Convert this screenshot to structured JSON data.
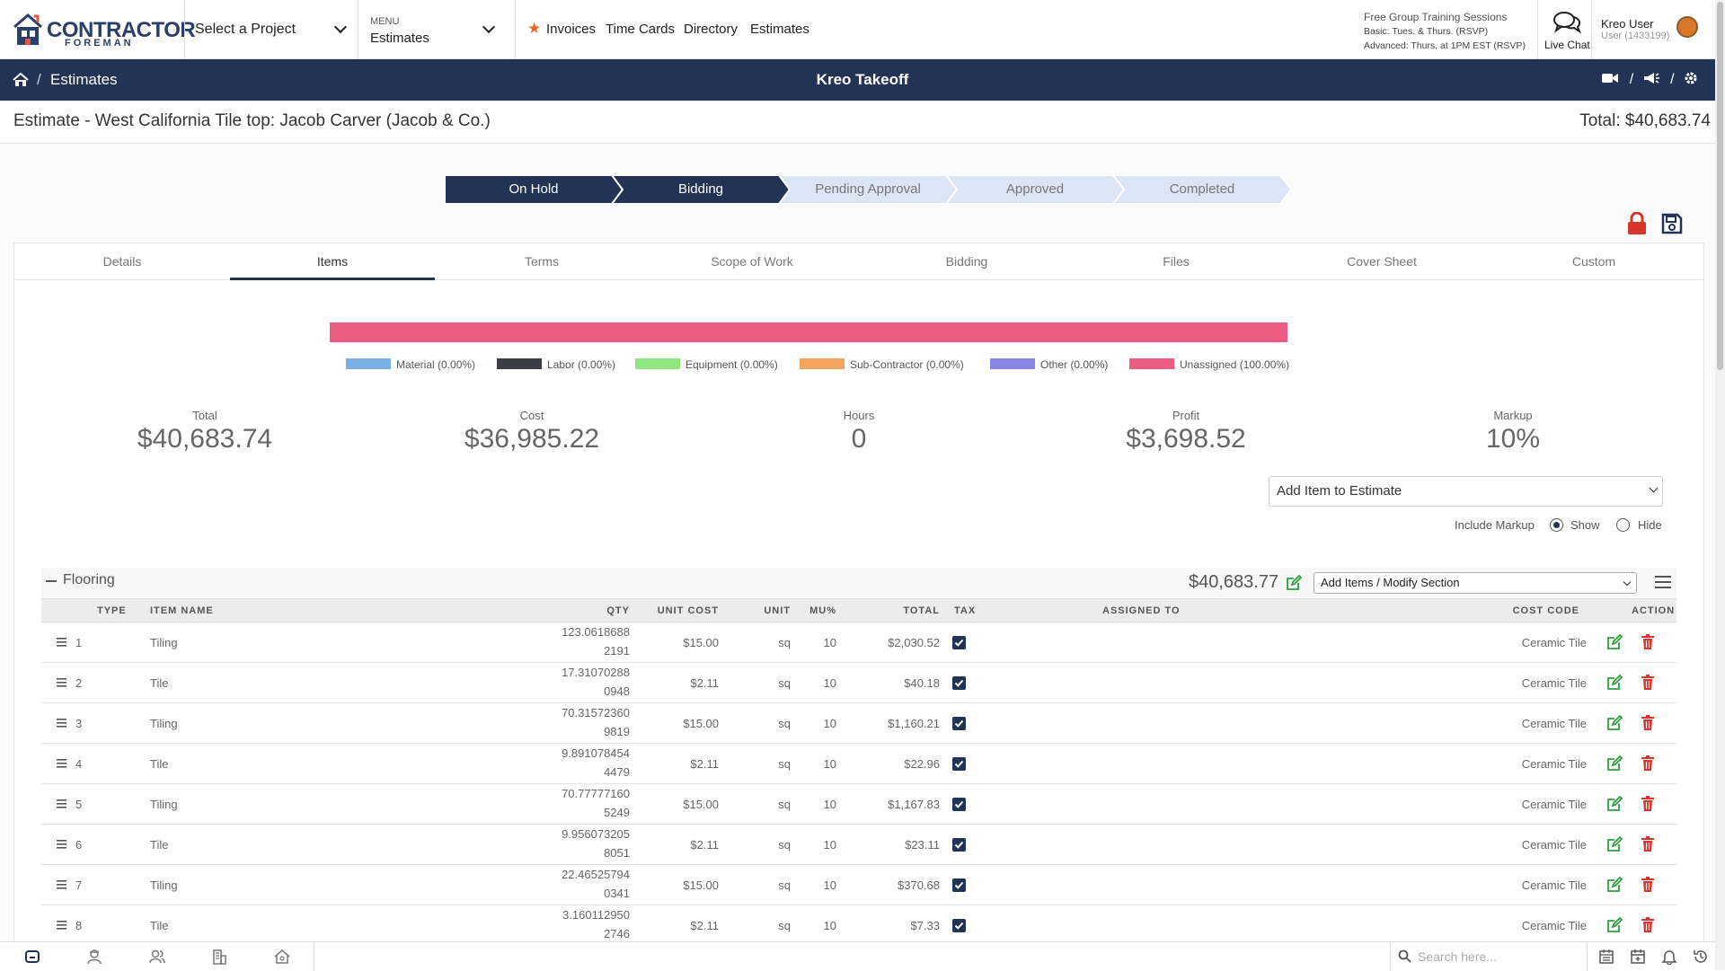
{
  "header": {
    "logo_line1": "CONTRACTOR",
    "logo_line2": "FOREMAN",
    "project_select": "Select a Project",
    "menu_label": "MENU",
    "menu_value": "Estimates",
    "quick_links": [
      "Invoices",
      "Time Cards",
      "Directory",
      "Estimates"
    ],
    "training_title": "Free Group Training Sessions",
    "training_basic": "Basic: Tues. & Thurs. (RSVP)",
    "training_advanced": "Advanced: Thurs. at 1PM EST (RSVP)",
    "live_chat": "Live Chat",
    "user_name": "Kreo User",
    "user_id": "User (1433199)"
  },
  "navbar": {
    "breadcrumb_sep": "/",
    "breadcrumb": "Estimates",
    "title": "Kreo Takeoff",
    "icons": [
      "video-icon",
      "megaphone-icon",
      "settings-icon"
    ]
  },
  "estimate": {
    "title": "Estimate - West California Tile top: Jacob Carver (Jacob & Co.)",
    "total": "Total: $40,683.74"
  },
  "status_steps": [
    {
      "label": "On Hold",
      "active": true
    },
    {
      "label": "Bidding",
      "active": true
    },
    {
      "label": "Pending Approval",
      "active": false
    },
    {
      "label": "Approved",
      "active": false
    },
    {
      "label": "Completed",
      "active": false
    }
  ],
  "tabs": [
    "Details",
    "Items",
    "Terms",
    "Scope of Work",
    "Bidding",
    "Files",
    "Cover Sheet",
    "Custom"
  ],
  "active_tab": "Items",
  "cost_breakdown": [
    {
      "label": "Material (0.00%)",
      "color": "#7aafe4"
    },
    {
      "label": "Labor (0.00%)",
      "color": "#3a3d42"
    },
    {
      "label": "Equipment (0.00%)",
      "color": "#8ee67e"
    },
    {
      "label": "Sub-Contractor (0.00%)",
      "color": "#f3a560"
    },
    {
      "label": "Other (0.00%)",
      "color": "#8786e2"
    },
    {
      "label": "Unassigned (100.00%)",
      "color": "#ec5b80"
    }
  ],
  "kpis": [
    {
      "label": "Total",
      "value": "$40,683.74"
    },
    {
      "label": "Cost",
      "value": "$36,985.22"
    },
    {
      "label": "Hours",
      "value": "0"
    },
    {
      "label": "Profit",
      "value": "$3,698.52"
    },
    {
      "label": "Markup",
      "value": "10%"
    }
  ],
  "add_item_select": "Add Item to Estimate",
  "include_markup": {
    "label": "Include Markup",
    "show": "Show",
    "hide": "Hide",
    "selected": "Show"
  },
  "section": {
    "name": "Flooring",
    "total": "$40,683.77",
    "modify_select": "Add Items / Modify Section"
  },
  "columns": [
    "TYPE",
    "ITEM NAME",
    "QTY",
    "UNIT COST",
    "UNIT",
    "MU%",
    "TOTAL",
    "TAX",
    "ASSIGNED TO",
    "COST CODE",
    "ACTION"
  ],
  "rows": [
    {
      "type": "1",
      "name": "Tiling",
      "qty1": "123.0618688",
      "qty2": "2191",
      "unit_cost": "$15.00",
      "unit": "sq",
      "mu": "10",
      "total": "$2,030.52",
      "cost_code": "Ceramic Tile"
    },
    {
      "type": "2",
      "name": "Tile",
      "qty1": "17.31070288",
      "qty2": "0948",
      "unit_cost": "$2.11",
      "unit": "sq",
      "mu": "10",
      "total": "$40.18",
      "cost_code": "Ceramic Tile"
    },
    {
      "type": "3",
      "name": "Tiling",
      "qty1": "70.31572360",
      "qty2": "9819",
      "unit_cost": "$15.00",
      "unit": "sq",
      "mu": "10",
      "total": "$1,160.21",
      "cost_code": "Ceramic Tile"
    },
    {
      "type": "4",
      "name": "Tile",
      "qty1": "9.891078454",
      "qty2": "4479",
      "unit_cost": "$2.11",
      "unit": "sq",
      "mu": "10",
      "total": "$22.96",
      "cost_code": "Ceramic Tile"
    },
    {
      "type": "5",
      "name": "Tiling",
      "qty1": "70.77777160",
      "qty2": "5249",
      "unit_cost": "$15.00",
      "unit": "sq",
      "mu": "10",
      "total": "$1,167.83",
      "cost_code": "Ceramic Tile"
    },
    {
      "type": "6",
      "name": "Tile",
      "qty1": "9.956073205",
      "qty2": "8051",
      "unit_cost": "$2.11",
      "unit": "sq",
      "mu": "10",
      "total": "$23.11",
      "cost_code": "Ceramic Tile"
    },
    {
      "type": "7",
      "name": "Tiling",
      "qty1": "22.46525794",
      "qty2": "0341",
      "unit_cost": "$15.00",
      "unit": "sq",
      "mu": "10",
      "total": "$370.68",
      "cost_code": "Ceramic Tile"
    },
    {
      "type": "8",
      "name": "Tile",
      "qty1": "3.160112950",
      "qty2": "2746",
      "unit_cost": "$2.11",
      "unit": "sq",
      "mu": "10",
      "total": "$7.33",
      "cost_code": "Ceramic Tile"
    }
  ],
  "bottombar": {
    "search_placeholder": "Search here..."
  },
  "colors": {
    "navy": "#223356",
    "step_inactive": "#dbe5f4",
    "unassigned": "#ec5b80",
    "edit_green": "#2e9e3e",
    "delete_red": "#d9342b",
    "lock_red": "#d9342b",
    "star_orange": "#f26522"
  }
}
